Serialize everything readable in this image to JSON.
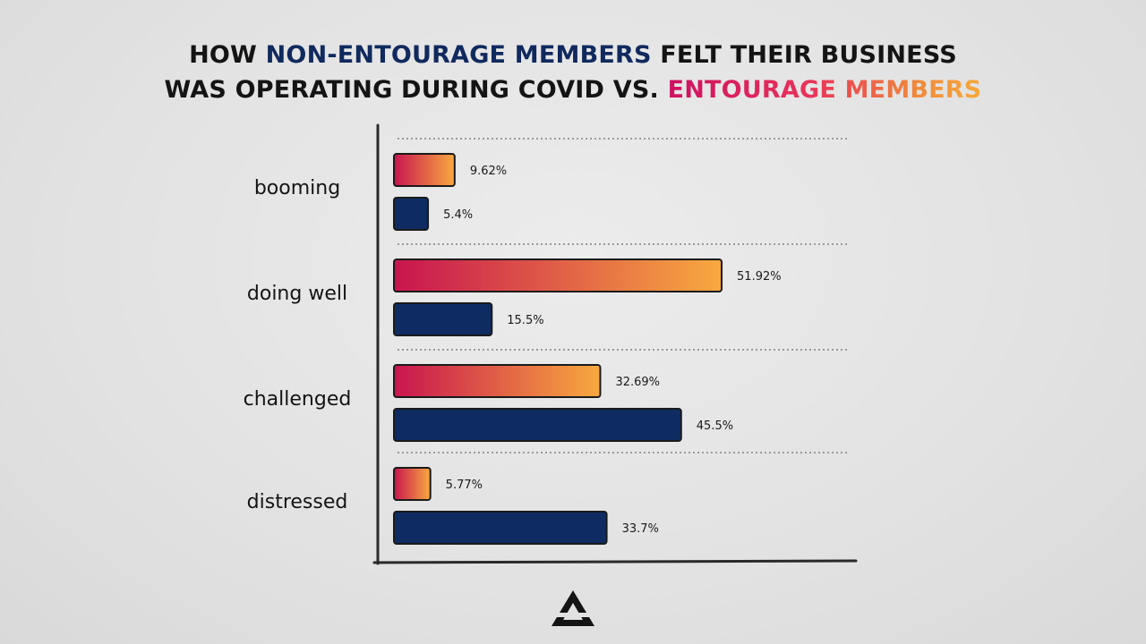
{
  "title": {
    "line1_prefix": "HOW ",
    "line1_highlight": "NON-ENTOURAGE MEMBERS",
    "line1_suffix": " FELT THEIR BUSINESS",
    "line2_prefix": "WAS OPERATING DURING COVID VS. ",
    "line2_highlight": "ENTOURAGE MEMBERS"
  },
  "colors": {
    "non_entourage": "#0f2c62",
    "entourage_start": "#c8154f",
    "entourage_end": "#f8a93f",
    "axis": "#2a2a2a",
    "grid": "#9a9a9a"
  },
  "logo": {
    "icon": "triangle-logo-icon"
  },
  "chart_data": {
    "type": "bar",
    "orientation": "horizontal",
    "categories": [
      "booming",
      "doing well",
      "challenged",
      "distressed"
    ],
    "series": [
      {
        "name": "ENTOURAGE MEMBERS",
        "values": [
          9.62,
          51.92,
          32.69,
          5.77
        ],
        "labels": [
          "9.62%",
          "51.92%",
          "32.69%",
          "5.77%"
        ]
      },
      {
        "name": "NON-ENTOURAGE MEMBERS",
        "values": [
          5.4,
          15.5,
          45.5,
          33.7
        ],
        "labels": [
          "5.4%",
          "15.5%",
          "45.5%",
          "33.7%"
        ]
      }
    ],
    "unit": "%",
    "grid": "dotted horizontal separators",
    "legend": "in title"
  }
}
